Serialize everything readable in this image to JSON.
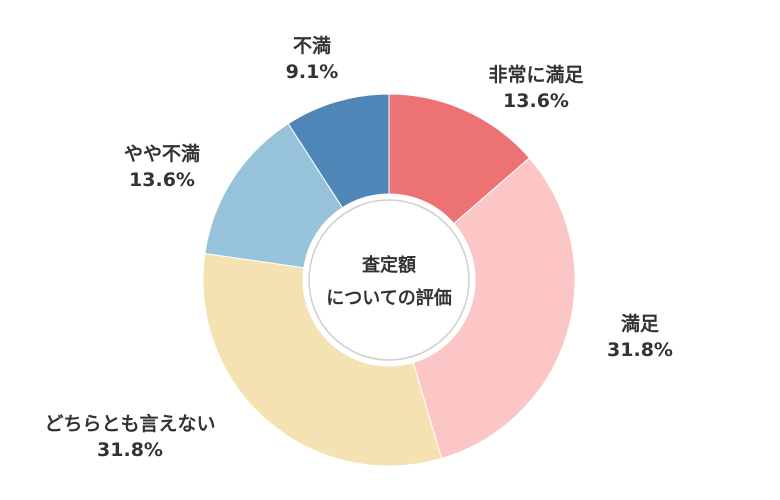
{
  "chart_data": {
    "type": "pie",
    "variant": "donut",
    "center_text": [
      "査定額",
      "についての評価"
    ],
    "slices": [
      {
        "label": "非常に満足",
        "value": 13.6,
        "display": "13.6%",
        "color": "#ec7274"
      },
      {
        "label": "満足",
        "value": 31.8,
        "display": "31.8%",
        "color": "#fcc5c6"
      },
      {
        "label": "どちらとも言えない",
        "value": 31.8,
        "display": "31.8%",
        "color": "#f4e2b2"
      },
      {
        "label": "やや不満",
        "value": 13.6,
        "display": "13.6%",
        "color": "#96c2da"
      },
      {
        "label": "不満",
        "value": 9.1,
        "display": "9.1%",
        "color": "#4f86b8"
      }
    ],
    "start": "12 o'clock",
    "direction": "clockwise"
  }
}
